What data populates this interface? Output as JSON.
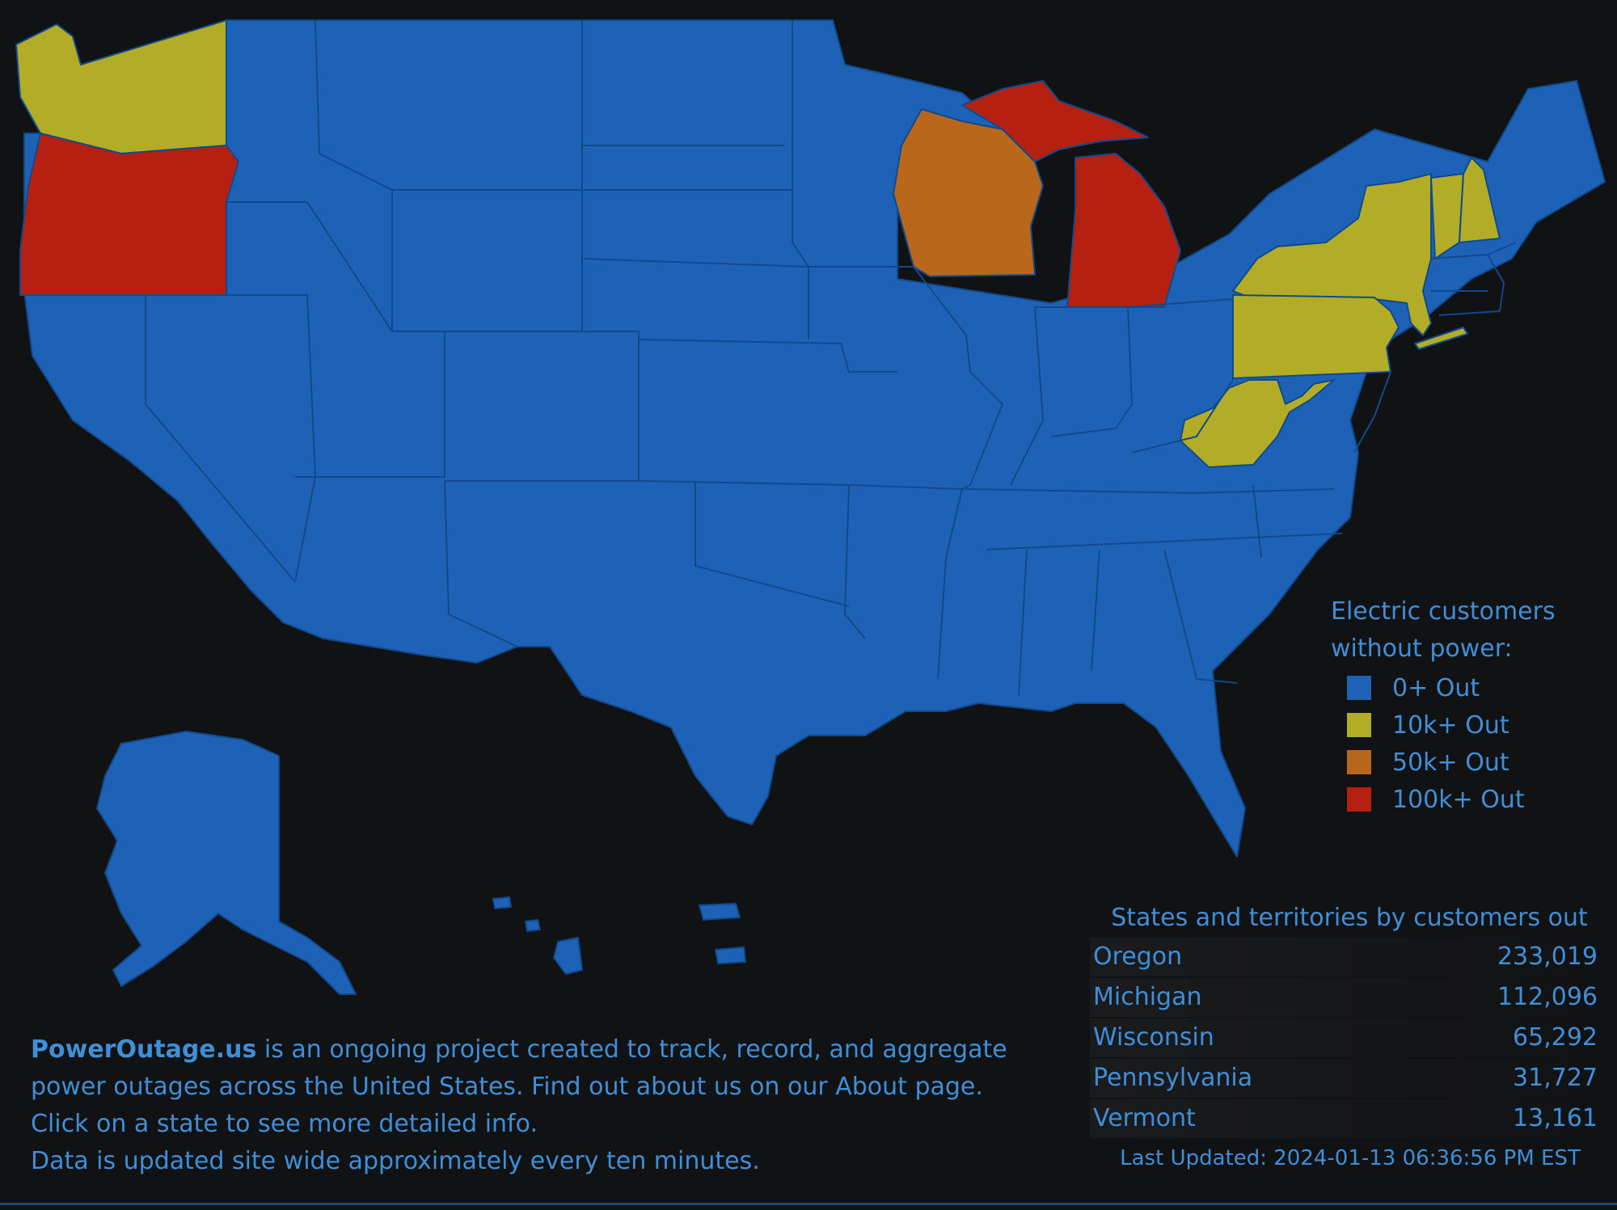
{
  "colors": {
    "background": "#111214",
    "tier_0": "#1e62b8",
    "tier_10k": "#b3ac27",
    "tier_50k": "#b8671b",
    "tier_100k": "#b52010",
    "text": "#3f8fd8"
  },
  "map": {
    "states_by_tier": {
      "100k_out": [
        "Oregon",
        "Michigan"
      ],
      "50k_out": [
        "Wisconsin"
      ],
      "10k_out": [
        "Washington",
        "New York",
        "Pennsylvania",
        "West Virginia",
        "Vermont",
        "New Hampshire"
      ],
      "0_out": [
        "all other states and territories"
      ]
    }
  },
  "legend": {
    "title_line1": "Electric customers",
    "title_line2": "without power:",
    "items": [
      {
        "label": "0+ Out",
        "color": "#1e62b8"
      },
      {
        "label": "10k+ Out",
        "color": "#b3ac27"
      },
      {
        "label": "50k+ Out",
        "color": "#b8671b"
      },
      {
        "label": "100k+ Out",
        "color": "#b52010"
      }
    ]
  },
  "table": {
    "header": "States and territories by customers out",
    "rows": [
      {
        "state": "Oregon",
        "count": "233,019"
      },
      {
        "state": "Michigan",
        "count": "112,096"
      },
      {
        "state": "Wisconsin",
        "count": "65,292"
      },
      {
        "state": "Pennsylvania",
        "count": "31,727"
      },
      {
        "state": "Vermont",
        "count": "13,161"
      }
    ],
    "last_updated": "Last Updated: 2024-01-13 06:36:56 PM EST"
  },
  "blurb": {
    "brand": "PowerOutage.us",
    "line1_rest": " is an ongoing project created to track, record, and aggregate",
    "line2": "power outages across the United States. Find out about us on our About page.",
    "line3": "Click on a state to see more detailed info.",
    "line4": "Data is updated site wide approximately every ten minutes."
  }
}
